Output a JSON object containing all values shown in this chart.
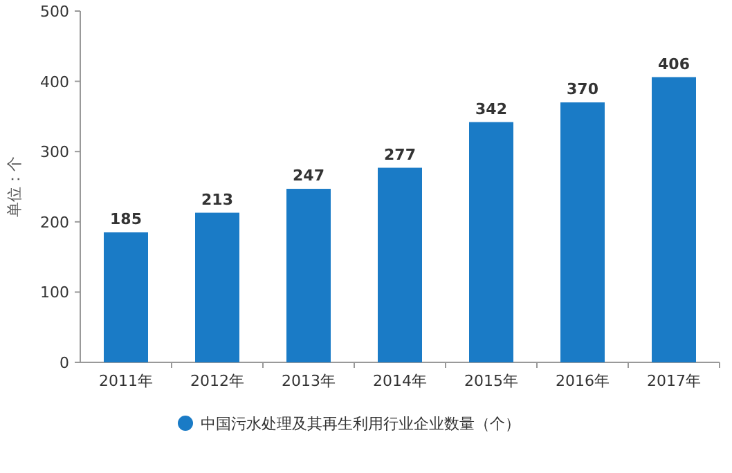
{
  "chart_data": {
    "type": "bar",
    "ylabel": "单位：个",
    "categories": [
      "2011年",
      "2012年",
      "2013年",
      "2014年",
      "2015年",
      "2016年",
      "2017年"
    ],
    "series": [
      {
        "name": "中国污水处理及其再生利用行业企业数量（个）",
        "color": "#1a7bc6",
        "values": [
          185,
          213,
          247,
          277,
          342,
          370,
          406
        ]
      }
    ],
    "ylim": [
      0,
      500
    ],
    "yticks": [
      0,
      100,
      200,
      300,
      400,
      500
    ],
    "data_labels": true,
    "legend": "bottom",
    "grid": false
  }
}
